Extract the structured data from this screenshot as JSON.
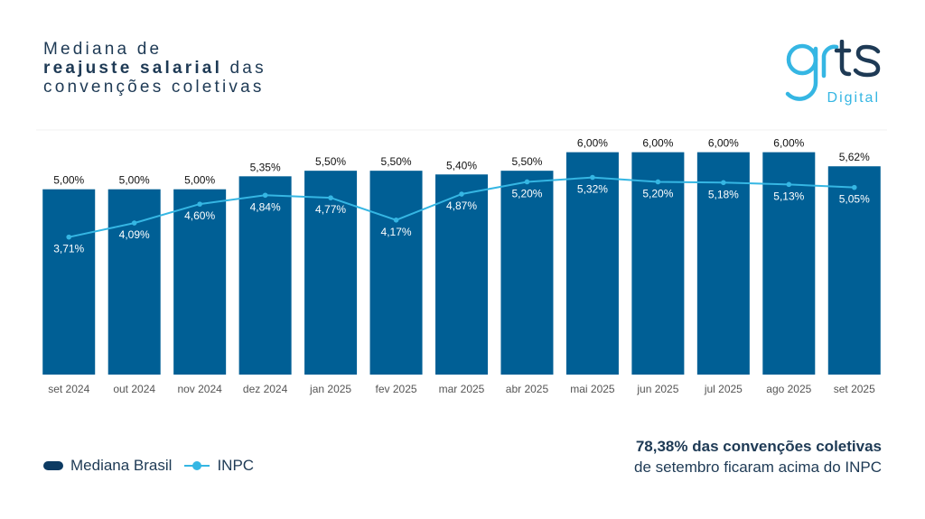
{
  "title": {
    "line1": "Mediana de",
    "line2_bold": "reajuste salarial",
    "line2_rest": " das",
    "line3": "convenções coletivas"
  },
  "logo": {
    "mark": "grts",
    "sub": "Digital"
  },
  "legend": {
    "bars": "Mediana Brasil",
    "line": "INPC"
  },
  "note": {
    "line1": "78,38% das convenções coletivas",
    "line2": "de setembro ficaram acima do INPC"
  },
  "colors": {
    "bar": "#005f95",
    "line": "#35b6e3",
    "text": "#1e3a55"
  },
  "chart_data": {
    "type": "bar",
    "categories": [
      "set 2024",
      "out 2024",
      "nov 2024",
      "dez 2024",
      "jan 2025",
      "fev 2025",
      "mar 2025",
      "abr 2025",
      "mai 2025",
      "jun 2025",
      "jul 2025",
      "ago 2025",
      "set 2025"
    ],
    "series": [
      {
        "name": "Mediana Brasil",
        "type": "bar",
        "values": [
          5.0,
          5.0,
          5.0,
          5.35,
          5.5,
          5.5,
          5.4,
          5.5,
          6.0,
          6.0,
          6.0,
          6.0,
          5.62
        ],
        "labels": [
          "5,00%",
          "5,00%",
          "5,00%",
          "5,35%",
          "5,50%",
          "5,50%",
          "5,40%",
          "5,50%",
          "6,00%",
          "6,00%",
          "6,00%",
          "6,00%",
          "5,62%"
        ]
      },
      {
        "name": "INPC",
        "type": "line",
        "values": [
          3.71,
          4.09,
          4.6,
          4.84,
          4.77,
          4.17,
          4.87,
          5.2,
          5.32,
          5.2,
          5.18,
          5.13,
          5.05
        ],
        "labels": [
          "3,71%",
          "4,09%",
          "4,60%",
          "4,84%",
          "4,77%",
          "4,17%",
          "4,87%",
          "5,20%",
          "5,32%",
          "5,20%",
          "5,18%",
          "5,13%",
          "5,05%"
        ]
      }
    ],
    "title": "Mediana de reajuste salarial das convenções coletivas",
    "xlabel": "",
    "ylabel": "",
    "ylim": [
      0,
      6.6
    ],
    "legend_position": "bottom-left"
  }
}
